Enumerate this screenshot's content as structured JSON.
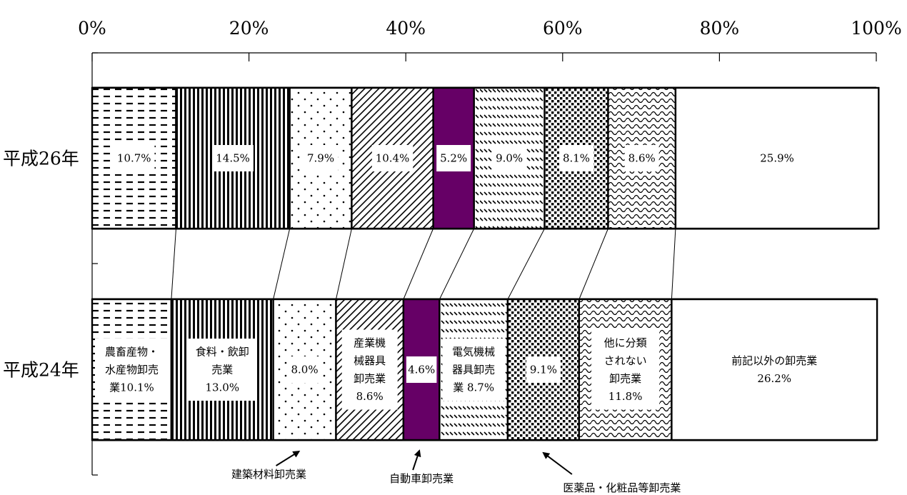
{
  "chart_data": {
    "type": "bar",
    "orientation": "horizontal",
    "stacked": "percent",
    "categories": [
      "平成26年",
      "平成24年"
    ],
    "xlim": [
      0,
      100
    ],
    "x_ticks": [
      "0%",
      "20%",
      "40%",
      "60%",
      "80%",
      "100%"
    ],
    "series": [
      {
        "values": [
          10.7,
          10.1
        ],
        "pattern": "dashes",
        "labels": [
          "10.7%",
          "農畜産物・\n水産物卸売\n業10.1%"
        ]
      },
      {
        "values": [
          14.5,
          13.0
        ],
        "pattern": "vertical-stripes",
        "labels": [
          "14.5%",
          "食料・飲卸\n売業\n13.0%"
        ]
      },
      {
        "values": [
          7.9,
          8.0
        ],
        "pattern": "sparse-dots",
        "labels": [
          "7.9%",
          "8.0%"
        ]
      },
      {
        "values": [
          10.4,
          8.6
        ],
        "pattern": "diagonal-lines",
        "labels": [
          "10.4%",
          "産業機\n械器具\n卸売業\n8.6%"
        ]
      },
      {
        "values": [
          5.2,
          4.6
        ],
        "pattern": "solid",
        "color": "#660066",
        "labels": [
          "5.2%",
          "4.6%"
        ]
      },
      {
        "values": [
          9.0,
          8.7
        ],
        "pattern": "dashed-diagonal",
        "labels": [
          "9.0%",
          "電気機械\n器具卸売\n業 8.7%"
        ]
      },
      {
        "values": [
          8.1,
          9.1
        ],
        "pattern": "dense-dots",
        "labels": [
          "8.1%",
          "9.1%"
        ]
      },
      {
        "values": [
          8.6,
          11.8
        ],
        "pattern": "waves",
        "labels": [
          "8.6%",
          "他に分類\nされない\n卸売業\n11.8%"
        ]
      },
      {
        "values": [
          25.9,
          26.2
        ],
        "pattern": "none",
        "labels": [
          "25.9%",
          "前記以外の卸売業\n26.2%"
        ]
      }
    ],
    "annotations": [
      {
        "text": "建築材料卸売業",
        "points_to_series": 2
      },
      {
        "text": "自動車卸売業",
        "points_to_series": 4
      },
      {
        "text": "医薬品・化粧品等卸売業",
        "points_to_series": 6
      }
    ],
    "grid": false,
    "legend": "none"
  },
  "colors": {
    "stroke": "#000000",
    "accent": "#660066",
    "background": "#ffffff"
  }
}
